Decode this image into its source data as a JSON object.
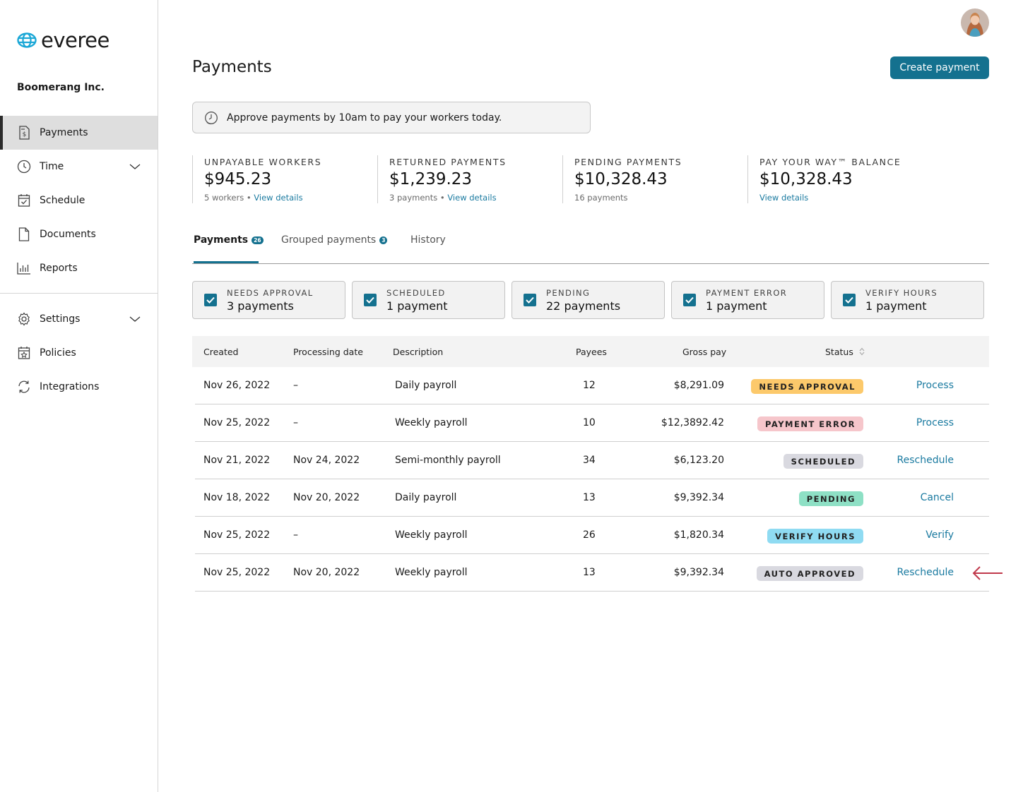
{
  "brand": {
    "name": "everee",
    "accent": "#14718f",
    "logo_color": "#1aa7d6"
  },
  "company": "Boomerang Inc.",
  "sidebar": {
    "items": [
      {
        "label": "Payments",
        "icon": "payments-icon",
        "active": true
      },
      {
        "label": "Time",
        "icon": "clock-icon",
        "expandable": true
      },
      {
        "label": "Schedule",
        "icon": "calendar-check-icon"
      },
      {
        "label": "Documents",
        "icon": "document-icon"
      },
      {
        "label": "Reports",
        "icon": "bar-chart-icon"
      }
    ],
    "items2": [
      {
        "label": "Settings",
        "icon": "gear-icon",
        "expandable": true
      },
      {
        "label": "Policies",
        "icon": "calendar-star-icon"
      },
      {
        "label": "Integrations",
        "icon": "sync-icon"
      }
    ]
  },
  "header": {
    "title": "Payments",
    "create_label": "Create payment"
  },
  "notice": {
    "text": "Approve payments by 10am to pay your workers today.",
    "icon": "clock-icon"
  },
  "stats": [
    {
      "label": "UNPAYABLE WORKERS",
      "value": "$945.23",
      "sub": "5 workers",
      "link": "View details"
    },
    {
      "label": "RETURNED PAYMENTS",
      "value": "$1,239.23",
      "sub": "3 payments",
      "link": "View details"
    },
    {
      "label": "PENDING PAYMENTS",
      "value": "$10,328.43",
      "sub": "16 payments",
      "link": ""
    },
    {
      "label": "PAY YOUR WAY™ BALANCE",
      "value": "$10,328.43",
      "sub": "",
      "link": "View details"
    }
  ],
  "tabs": [
    {
      "label": "Payments",
      "count": "26",
      "active": true
    },
    {
      "label": "Grouped payments",
      "count": "3"
    },
    {
      "label": "History",
      "count": ""
    }
  ],
  "filters": [
    {
      "label": "NEEDS APPROVAL",
      "value": "3 payments",
      "checked": true
    },
    {
      "label": "SCHEDULED",
      "value": "1 payment",
      "checked": true
    },
    {
      "label": "PENDING",
      "value": "22 payments",
      "checked": true
    },
    {
      "label": "PAYMENT ERROR",
      "value": "1 payment",
      "checked": true
    },
    {
      "label": "VERIFY HOURS",
      "value": "1 payment",
      "checked": true
    }
  ],
  "table": {
    "headers": {
      "created": "Created",
      "processing": "Processing date",
      "description": "Description",
      "payees": "Payees",
      "gross": "Gross pay",
      "status": "Status"
    },
    "rows": [
      {
        "created": "Nov 26, 2022",
        "processing": "–",
        "description": "Daily payroll",
        "payees": "12",
        "gross": "$8,291.09",
        "status": "NEEDS APPROVAL",
        "status_color": "#fcc96b",
        "action": "Process"
      },
      {
        "created": "Nov 25, 2022",
        "processing": "–",
        "description": "Weekly payroll",
        "payees": "10",
        "gross": "$12,3892.42",
        "status": "PAYMENT ERROR",
        "status_color": "#f6c6cb",
        "action": "Process"
      },
      {
        "created": "Nov 21, 2022",
        "processing": "Nov 24, 2022",
        "description": "Semi-monthly payroll",
        "payees": "34",
        "gross": "$6,123.20",
        "status": "SCHEDULED",
        "status_color": "#d9d9e0",
        "action": "Reschedule"
      },
      {
        "created": "Nov 18, 2022",
        "processing": "Nov 20, 2022",
        "description": "Daily payroll",
        "payees": "13",
        "gross": "$9,392.34",
        "status": "PENDING",
        "status_color": "#8ee0c5",
        "action": "Cancel"
      },
      {
        "created": "Nov 25, 2022",
        "processing": "–",
        "description": "Weekly payroll",
        "payees": "26",
        "gross": "$1,820.34",
        "status": "VERIFY HOURS",
        "status_color": "#8fdbf2",
        "action": "Verify"
      },
      {
        "created": "Nov 25, 2022",
        "processing": "Nov 20, 2022",
        "description": "Weekly payroll",
        "payees": "13",
        "gross": "$9,392.34",
        "status": "AUTO APPROVED",
        "status_color": "#d9d9e0",
        "action": "Reschedule"
      }
    ]
  },
  "annotation": {
    "icon": "left-arrow-icon",
    "color": "#c0394b"
  }
}
